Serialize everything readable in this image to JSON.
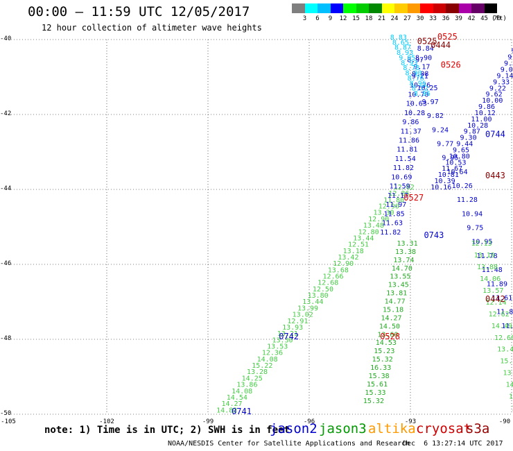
{
  "header": {
    "title": "00:00 – 11:59 UTC 12/05/2017",
    "subtitle": "12 hour collection of altimeter wave heights"
  },
  "legend": {
    "unit": "(ft)",
    "bins": [
      {
        "label": "3",
        "color": "#7f7f7f"
      },
      {
        "label": "6",
        "color": "#00ffff"
      },
      {
        "label": "9",
        "color": "#00bfff"
      },
      {
        "label": "12",
        "color": "#0000ff"
      },
      {
        "label": "15",
        "color": "#00ff00"
      },
      {
        "label": "18",
        "color": "#00cc00"
      },
      {
        "label": "21",
        "color": "#008800"
      },
      {
        "label": "24",
        "color": "#ffff00"
      },
      {
        "label": "27",
        "color": "#ffcc00"
      },
      {
        "label": "30",
        "color": "#ff9900"
      },
      {
        "label": "33",
        "color": "#ff0000"
      },
      {
        "label": "36",
        "color": "#cc0000"
      },
      {
        "label": "39",
        "color": "#880000"
      },
      {
        "label": "42",
        "color": "#aa00aa"
      },
      {
        "label": "45",
        "color": "#660066"
      },
      {
        "label": "70",
        "color": "#000000"
      }
    ]
  },
  "note": "note: 1) Time is in UTC; 2) SWH is in feet",
  "satellites": [
    {
      "name": "jason2",
      "color": "#0000cc"
    },
    {
      "name": "jason3",
      "color": "#009900"
    },
    {
      "name": "altika",
      "color": "#ff9900"
    },
    {
      "name": "cryosat",
      "color": "#cc0000"
    },
    {
      "name": "s3a",
      "color": "#990000"
    }
  ],
  "footer": {
    "agency": "NOAA/NESDIS Center for Satellite Applications and Research",
    "timestamp": "Dec  6 13:27:14 UTC 2017"
  },
  "chart_data": {
    "type": "scatter",
    "xlim": [
      -105,
      -90
    ],
    "ylim": [
      -50,
      -40
    ],
    "x_ticks": [
      "-105",
      "-102",
      "-99",
      "-96",
      "-93",
      "-90"
    ],
    "y_ticks": [
      "-40",
      "-42",
      "-44",
      "-46",
      "-48",
      "-50"
    ],
    "tracks": [
      {
        "satellite": "jason3",
        "color": "#44cc44",
        "start": [
          -98.75,
          -49.95
        ],
        "end": [
          -93.5,
          -44.0
        ],
        "values": [
          "14.82",
          "14.27",
          "14.54",
          "14.08",
          "13.86",
          "14.25",
          "13.28",
          "15.22",
          "14.08",
          "12.36",
          "13.53",
          "13.30",
          "13.21",
          "13.93",
          "12.91",
          "13.02",
          "13.99",
          "13.44",
          "13.80",
          "12.50",
          "12.68",
          "12.66",
          "13.68",
          "12.90",
          "13.42",
          "13.18",
          "12.51",
          "13.44",
          "12.80",
          "13.48",
          "12.90",
          "13.30",
          "12.90",
          "11.80",
          "12.86",
          "12.62"
        ]
      },
      {
        "satellite": "jason3",
        "color": "#22aa22",
        "start": [
          -94.4,
          -49.7
        ],
        "end": [
          -93.4,
          -45.5
        ],
        "values": [
          "15.32",
          "15.33",
          "15.61",
          "15.38",
          "16.33",
          "15.32",
          "15.23",
          "14.53",
          "13.60",
          "14.50",
          "14.27",
          "15.18",
          "14.77",
          "13.81",
          "13.45",
          "13.55",
          "14.70",
          "13.74",
          "13.38",
          "13.31"
        ]
      },
      {
        "satellite": "jason2",
        "color": "#0000cc",
        "start": [
          -93.9,
          -45.2
        ],
        "end": [
          -92.8,
          -40.3
        ],
        "values": [
          "11.82",
          "11.63",
          "11.85",
          "11.97",
          "11.17",
          "11.59",
          "10.69",
          "11.82",
          "11.54",
          "11.81",
          "11.86",
          "11.37",
          "9.86",
          "10.28",
          "10.63",
          "10.70",
          "10.76",
          "9.21",
          "9.17",
          "8.90",
          "8.84"
        ]
      },
      {
        "satellite": "jason2",
        "color": "#0000cc",
        "start": [
          -92.4,
          -44.0
        ],
        "end": [
          -89.9,
          -40.2
        ],
        "values": [
          "10.16",
          "10.39",
          "10.81",
          "11.67",
          "10.53",
          "10.80",
          "9.65",
          "9.44",
          "9.30",
          "9.87",
          "10.28",
          "11.00",
          "10.12",
          "9.86",
          "10.00",
          "9.62",
          "9.22",
          "9.33",
          "9.14",
          "9.08",
          "9.32",
          "9.06",
          "9.10",
          "7.01"
        ]
      },
      {
        "satellite": "jason2",
        "color": "#0000cc",
        "start": [
          -93.1,
          -40.6
        ],
        "end": [
          -90.3,
          -47.7
        ],
        "values": [
          "8.97",
          "9.08",
          "10.25",
          "9.97",
          "9.82",
          "9.24",
          "9.77",
          "9.95",
          "10.64",
          "10.26",
          "11.28",
          "10.94",
          "9.75",
          "10.95",
          "11.78",
          "11.48",
          "11.89",
          "11.61",
          "11.80",
          "11.87"
        ]
      },
      {
        "satellite": "jason3",
        "color": "#44cc44",
        "start": [
          -91.2,
          -45.5
        ],
        "end": [
          -90.0,
          -49.9
        ],
        "values": [
          "12.13",
          "13.19",
          "13.88",
          "14.06",
          "13.57",
          "12.14",
          "12.62",
          "14.49",
          "12.66",
          "13.43",
          "15.78",
          "13.80",
          "14.23",
          "14.07",
          "15.32"
        ]
      },
      {
        "satellite": "altika",
        "color": "#00ccff",
        "start": [
          -93.6,
          -40.0
        ],
        "end": [
          -92.9,
          -41.5
        ],
        "values": [
          "8.83",
          "8.65",
          "8.87",
          "8.93",
          "9.05",
          "8.93",
          "8.78",
          "8.90",
          "8.76",
          "8.96",
          "8.72",
          "8.96"
        ]
      }
    ],
    "pass_labels": [
      {
        "text": "0525",
        "color": "#dd0000",
        "x": -92.2,
        "y": -40.0
      },
      {
        "text": "0444",
        "color": "#880000",
        "x": -92.4,
        "y": -40.22
      },
      {
        "text": "0525",
        "color": "#880000",
        "x": -92.8,
        "y": -40.12
      },
      {
        "text": "0526",
        "color": "#dd0000",
        "x": -92.1,
        "y": -40.75
      },
      {
        "text": "0744",
        "color": "#0000cc",
        "x": -89.0,
        "y": -42.6
      },
      {
        "text": "0443",
        "color": "#880000",
        "x": -90.4,
        "y": -43.7
      },
      {
        "text": "0527",
        "color": "#dd0000",
        "x": -93.2,
        "y": -44.3
      },
      {
        "text": "0743",
        "color": "#0000cc",
        "x": -92.6,
        "y": -45.3
      },
      {
        "text": "0442",
        "color": "#880000",
        "x": -87.6,
        "y": -47.0
      },
      {
        "text": "0742",
        "color": "#0000cc",
        "x": -96.9,
        "y": -48.0
      },
      {
        "text": "0528",
        "color": "#dd0000",
        "x": -93.9,
        "y": -48.0
      },
      {
        "text": "0741",
        "color": "#0000cc",
        "x": -98.3,
        "y": -50.0
      }
    ]
  }
}
